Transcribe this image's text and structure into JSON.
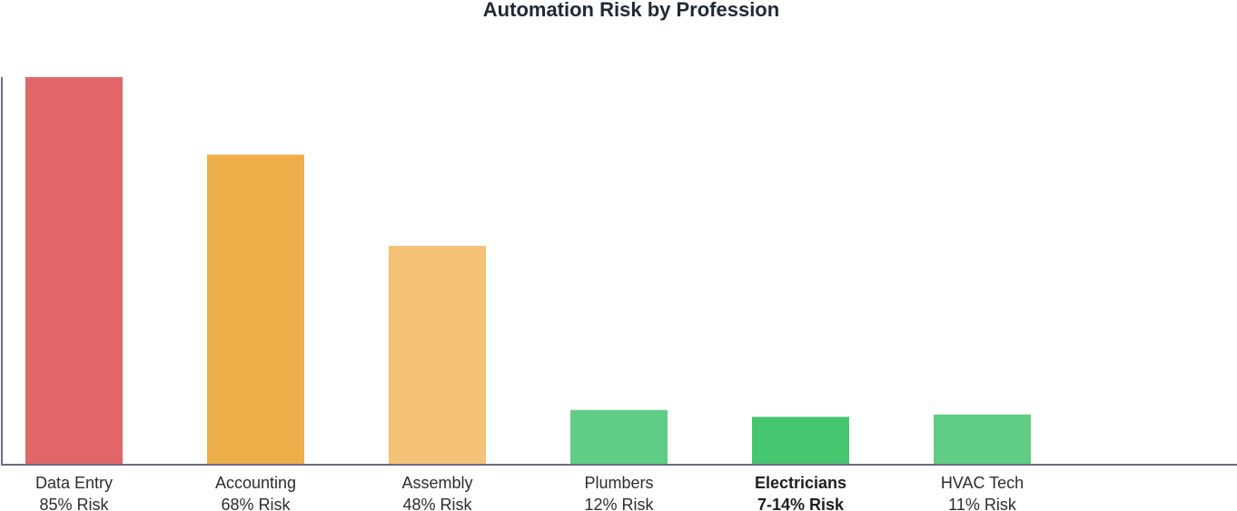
{
  "chart_data": {
    "type": "bar",
    "title": "Automation Risk by Profession",
    "xlabel": "",
    "ylabel": "",
    "ylim": [
      0,
      85
    ],
    "grid": false,
    "categories": [
      "Data Entry",
      "Accounting",
      "Assembly",
      "Plumbers",
      "Electricians",
      "HVAC Tech"
    ],
    "value_labels": [
      "85% Risk",
      "68% Risk",
      "48% Risk",
      "12% Risk",
      "7-14% Risk",
      "11% Risk"
    ],
    "values": [
      85,
      68,
      48,
      12,
      10.5,
      11
    ],
    "highlighted": "Electricians",
    "colors": [
      "#e26567",
      "#eeae49",
      "#f4c276",
      "#5fcd84",
      "#46c66f",
      "#5fcd84"
    ]
  }
}
